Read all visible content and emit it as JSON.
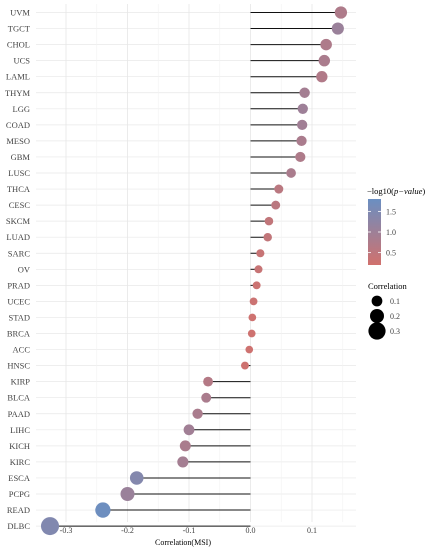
{
  "chart_data": {
    "type": "lollipop",
    "title": "",
    "xlabel": "Correlation(MSI)",
    "ylabel": "",
    "xlim": [
      -0.345,
      0.16
    ],
    "x_ticks": [
      -0.3,
      -0.2,
      -0.1,
      0.0,
      0.1
    ],
    "x_tick_labels": [
      "-0.3",
      "-0.2",
      "-0.1",
      "0.0",
      "0.1"
    ],
    "grid": true,
    "legend_position": "right",
    "color_legend": {
      "title_prefix": "−log10(",
      "title_italic": "p−value",
      "title_suffix": ")",
      "ticks": [
        1.5,
        1.0,
        0.5
      ],
      "tick_labels": [
        "1.5",
        "1.0",
        "0.5"
      ],
      "range": [
        0.2,
        1.8
      ],
      "low_color": "#d1716d",
      "high_color": "#6a8fc2"
    },
    "size_legend": {
      "title": "Correlation",
      "values": [
        0.1,
        0.2,
        0.3
      ],
      "labels": [
        "0.1",
        "0.2",
        "0.3"
      ]
    },
    "categories": [
      "UVM",
      "TGCT",
      "CHOL",
      "UCS",
      "LAML",
      "THYM",
      "LGG",
      "COAD",
      "MESO",
      "GBM",
      "LUSC",
      "THCA",
      "CESC",
      "SKCM",
      "LUAD",
      "SARC",
      "OV",
      "PRAD",
      "UCEC",
      "STAD",
      "BRCA",
      "ACC",
      "HNSC",
      "KIRP",
      "BLCA",
      "PAAD",
      "LIHC",
      "KICH",
      "KIRC",
      "ESCA",
      "PCPG",
      "READ",
      "DLBC"
    ],
    "x": [
      0.147,
      0.142,
      0.123,
      0.12,
      0.116,
      0.088,
      0.085,
      0.084,
      0.083,
      0.081,
      0.066,
      0.046,
      0.041,
      0.03,
      0.028,
      0.016,
      0.013,
      0.01,
      0.005,
      0.003,
      0.002,
      -0.002,
      -0.009,
      -0.069,
      -0.072,
      -0.086,
      -0.1,
      -0.106,
      -0.11,
      -0.185,
      -0.2,
      -0.24,
      -0.326
    ],
    "neglog10p": [
      0.75,
      1.05,
      0.75,
      0.8,
      0.7,
      0.9,
      1.0,
      0.95,
      0.8,
      0.75,
      0.8,
      0.55,
      0.55,
      0.45,
      0.45,
      0.35,
      0.35,
      0.3,
      0.3,
      0.25,
      0.25,
      0.25,
      0.25,
      0.65,
      0.8,
      0.8,
      0.95,
      0.8,
      0.9,
      1.4,
      1.05,
      1.75,
      1.45
    ]
  }
}
